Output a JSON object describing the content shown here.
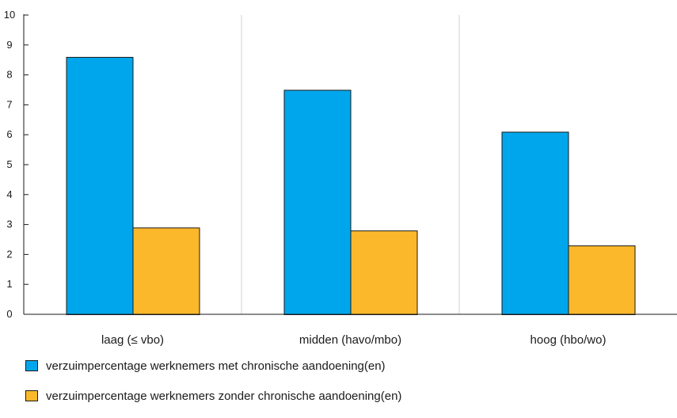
{
  "chart_data": {
    "type": "bar",
    "categories": [
      "laag (≤ vbo)",
      "midden (havo/mbo)",
      "hoog (hbo/wo)"
    ],
    "series": [
      {
        "name": "verzuimpercentage werknemers met chronische aandoening(en)",
        "values": [
          8.6,
          7.5,
          6.1
        ],
        "color": "#00a6eb"
      },
      {
        "name": "verzuimpercentage werknemers zonder chronische aandoening(en)",
        "values": [
          2.9,
          2.8,
          2.3
        ],
        "color": "#fbb82b"
      }
    ],
    "ylim": [
      0,
      10
    ],
    "yticks": [
      "0",
      "1",
      "2",
      "3",
      "4",
      "5",
      "6",
      "7",
      "8",
      "9",
      "10"
    ],
    "grid": "vertical separators between categories",
    "legend_position": "bottom-left"
  }
}
